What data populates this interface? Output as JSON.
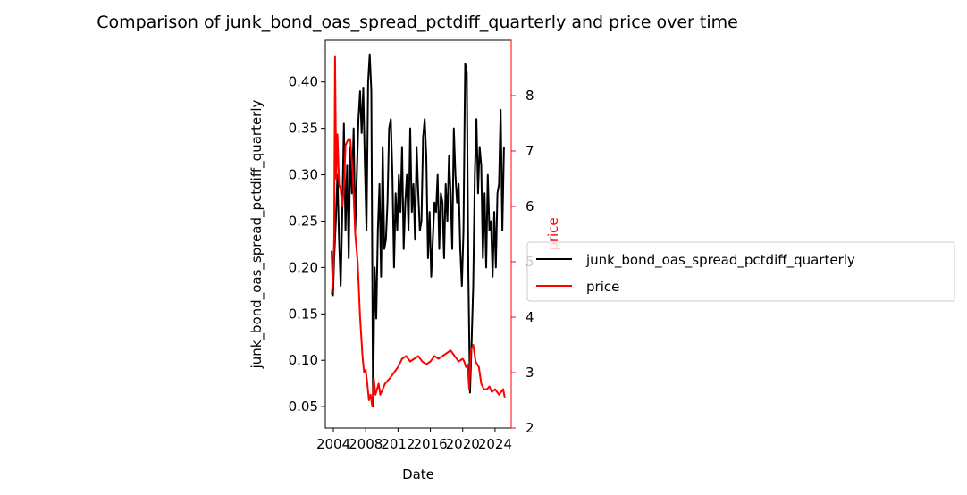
{
  "chart_data": {
    "type": "line",
    "title": "Comparison of junk_bond_oas_spread_pctdiff_quarterly and price over time",
    "xlabel": "Date",
    "ylabel_left": "junk_bond_oas_spread_pctdiff_quarterly",
    "ylabel_right": "price",
    "xlim": [
      2003.0,
      2026.0
    ],
    "ylim_left": [
      0.027,
      0.445
    ],
    "ylim_right": [
      2.0,
      9.0
    ],
    "x_ticks": [
      2004,
      2008,
      2012,
      2016,
      2020,
      2024
    ],
    "x_tick_labels": [
      "2004",
      "2008",
      "2012",
      "2016",
      "2020",
      "2024"
    ],
    "y_ticks_left": [
      0.05,
      0.1,
      0.15,
      0.2,
      0.25,
      0.3,
      0.35,
      0.4
    ],
    "y_tick_labels_left": [
      "0.05",
      "0.10",
      "0.15",
      "0.20",
      "0.25",
      "0.30",
      "0.35",
      "0.40"
    ],
    "y_ticks_right": [
      2,
      3,
      4,
      5,
      6,
      7,
      8
    ],
    "y_tick_labels_right": [
      "2",
      "3",
      "4",
      "5",
      "6",
      "7",
      "8"
    ],
    "grid": false,
    "legend_placement": "outside-right",
    "series": [
      {
        "name": "junk_bond_oas_spread_pctdiff_quarterly",
        "axis": "left",
        "color": "#000000",
        "x": [
          2003.8,
          2003.95,
          2004.1,
          2004.3,
          2004.5,
          2004.7,
          2004.9,
          2005.1,
          2005.3,
          2005.5,
          2005.7,
          2005.9,
          2006.1,
          2006.3,
          2006.5,
          2006.7,
          2006.9,
          2007.1,
          2007.3,
          2007.5,
          2007.7,
          2007.9,
          2008.1,
          2008.3,
          2008.5,
          2008.7,
          2008.9,
          2009.1,
          2009.3,
          2009.5,
          2009.7,
          2009.9,
          2010.1,
          2010.3,
          2010.5,
          2010.7,
          2010.9,
          2011.1,
          2011.3,
          2011.5,
          2011.7,
          2011.9,
          2012.1,
          2012.3,
          2012.5,
          2012.7,
          2012.9,
          2013.1,
          2013.3,
          2013.5,
          2013.7,
          2013.9,
          2014.1,
          2014.3,
          2014.5,
          2014.7,
          2014.9,
          2015.1,
          2015.3,
          2015.5,
          2015.7,
          2015.9,
          2016.1,
          2016.3,
          2016.5,
          2016.7,
          2016.9,
          2017.1,
          2017.3,
          2017.5,
          2017.7,
          2017.9,
          2018.1,
          2018.3,
          2018.5,
          2018.7,
          2018.9,
          2019.1,
          2019.3,
          2019.5,
          2019.7,
          2019.9,
          2020.1,
          2020.3,
          2020.5,
          2020.7,
          2020.9,
          2021.1,
          2021.3,
          2021.5,
          2021.7,
          2021.9,
          2022.1,
          2022.3,
          2022.5,
          2022.7,
          2022.9,
          2023.1,
          2023.3,
          2023.5,
          2023.7,
          2023.9,
          2024.1,
          2024.3,
          2024.5,
          2024.7,
          2024.9,
          2025.1
        ],
        "values": [
          0.218,
          0.17,
          0.21,
          0.25,
          0.3,
          0.23,
          0.18,
          0.26,
          0.355,
          0.24,
          0.31,
          0.21,
          0.33,
          0.28,
          0.35,
          0.24,
          0.3,
          0.36,
          0.39,
          0.345,
          0.394,
          0.31,
          0.24,
          0.4,
          0.43,
          0.39,
          0.05,
          0.2,
          0.145,
          0.24,
          0.29,
          0.19,
          0.33,
          0.22,
          0.23,
          0.27,
          0.35,
          0.36,
          0.3,
          0.2,
          0.28,
          0.24,
          0.3,
          0.26,
          0.33,
          0.22,
          0.27,
          0.3,
          0.24,
          0.35,
          0.26,
          0.29,
          0.23,
          0.33,
          0.28,
          0.24,
          0.25,
          0.34,
          0.36,
          0.32,
          0.21,
          0.26,
          0.19,
          0.23,
          0.27,
          0.26,
          0.3,
          0.22,
          0.28,
          0.27,
          0.21,
          0.29,
          0.25,
          0.32,
          0.28,
          0.22,
          0.35,
          0.3,
          0.27,
          0.29,
          0.22,
          0.18,
          0.24,
          0.42,
          0.41,
          0.19,
          0.065,
          0.12,
          0.18,
          0.3,
          0.36,
          0.28,
          0.33,
          0.31,
          0.21,
          0.28,
          0.2,
          0.3,
          0.24,
          0.25,
          0.19,
          0.26,
          0.2,
          0.28,
          0.29,
          0.37,
          0.24,
          0.33
        ]
      },
      {
        "name": "price",
        "axis": "right",
        "color": "#ff0000",
        "x": [
          2003.8,
          2004.0,
          2004.1,
          2004.2,
          2004.35,
          2004.5,
          2004.7,
          2004.9,
          2005.1,
          2005.3,
          2005.5,
          2005.8,
          2006.1,
          2006.4,
          2006.7,
          2007.0,
          2007.3,
          2007.6,
          2007.8,
          2008.0,
          2008.2,
          2008.4,
          2008.6,
          2008.8,
          2009.0,
          2009.2,
          2009.4,
          2009.6,
          2009.8,
          2010.1,
          2010.4,
          2010.7,
          2011.0,
          2011.5,
          2012.0,
          2012.5,
          2013.0,
          2013.5,
          2014.0,
          2014.5,
          2015.0,
          2015.5,
          2016.0,
          2016.5,
          2017.0,
          2017.5,
          2018.0,
          2018.5,
          2019.0,
          2019.5,
          2020.0,
          2020.2,
          2020.4,
          2020.6,
          2020.8,
          2021.0,
          2021.3,
          2021.6,
          2022.0,
          2022.3,
          2022.6,
          2023.0,
          2023.3,
          2023.6,
          2024.0,
          2024.5,
          2025.0,
          2025.2
        ],
        "values": [
          4.4,
          4.8,
          5.4,
          8.7,
          6.5,
          7.3,
          6.4,
          6.3,
          6.0,
          6.3,
          7.1,
          7.2,
          7.2,
          6.6,
          5.5,
          5.0,
          4.0,
          3.3,
          3.0,
          3.05,
          2.8,
          2.5,
          2.6,
          2.4,
          2.9,
          2.6,
          2.7,
          2.8,
          2.6,
          2.7,
          2.8,
          2.85,
          2.9,
          3.0,
          3.1,
          3.25,
          3.3,
          3.2,
          3.25,
          3.3,
          3.2,
          3.15,
          3.2,
          3.3,
          3.25,
          3.3,
          3.35,
          3.4,
          3.3,
          3.2,
          3.25,
          3.2,
          3.1,
          3.15,
          2.7,
          3.4,
          3.5,
          3.2,
          3.1,
          2.8,
          2.7,
          2.7,
          2.75,
          2.65,
          2.7,
          2.6,
          2.7,
          2.55
        ]
      }
    ]
  }
}
